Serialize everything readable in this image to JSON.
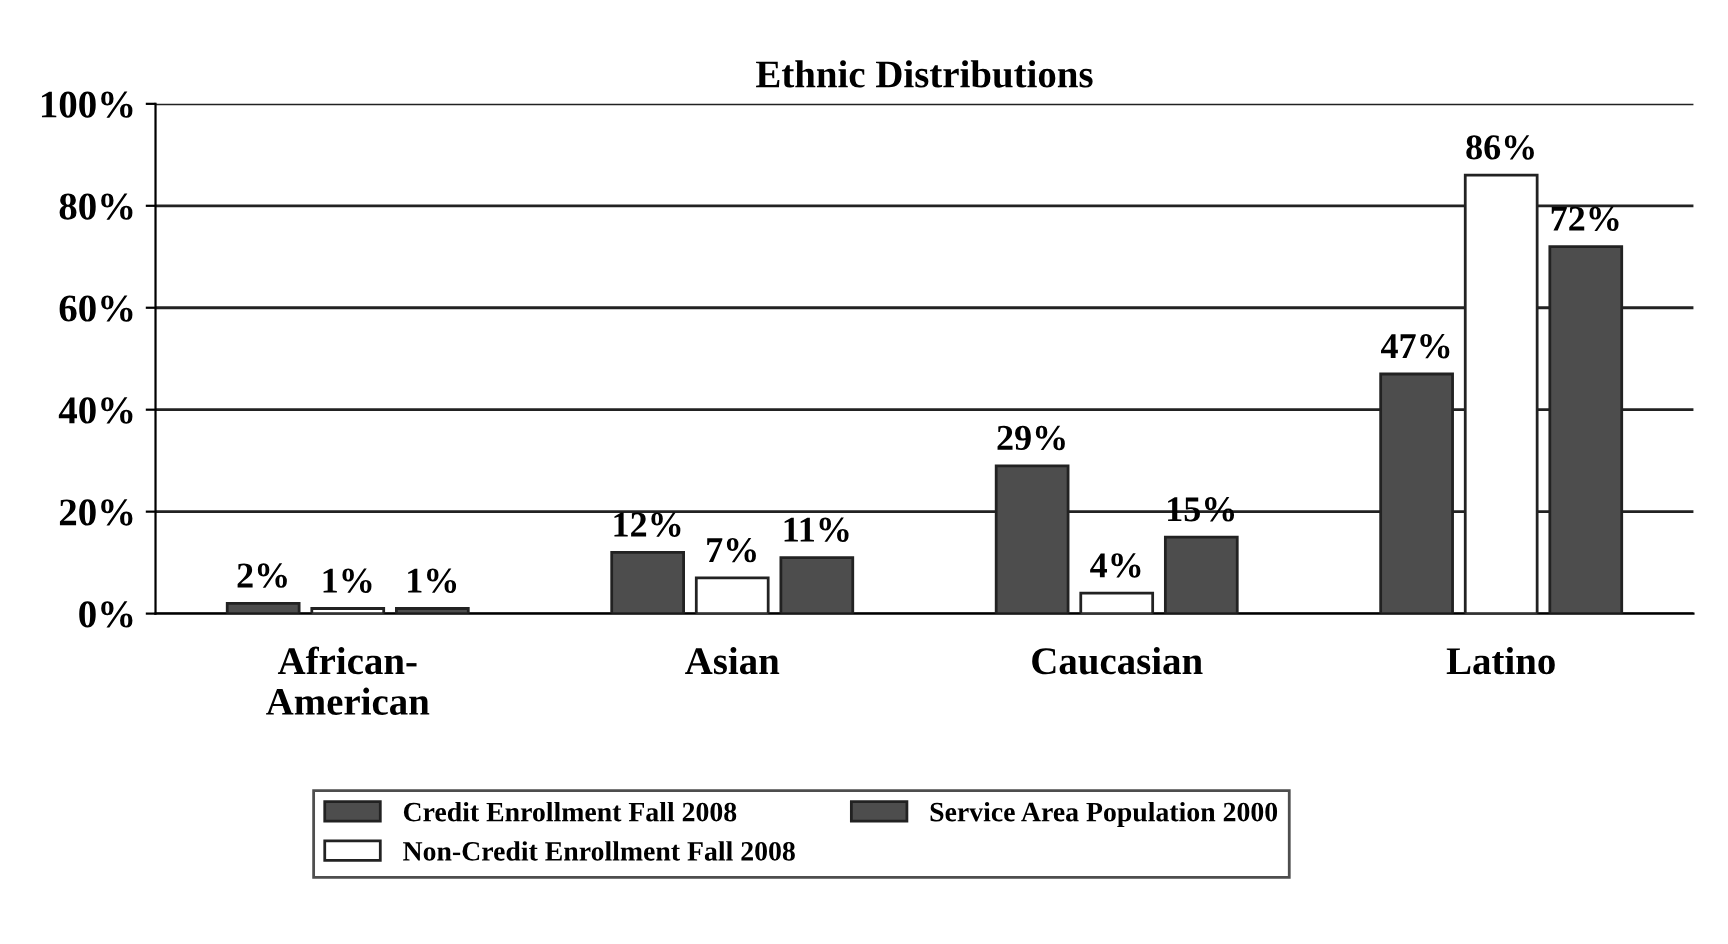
{
  "chart_data": {
    "type": "bar",
    "title": "Ethnic Distributions",
    "categories": [
      "African-\nAmerican",
      "Asian",
      "Caucasian",
      "Latino"
    ],
    "series": [
      {
        "name": "Credit Enrollment Fall 2008",
        "color": "#4d4d4d",
        "values": [
          2,
          12,
          29,
          47
        ],
        "value_labels": [
          "2%",
          "12%",
          "29%",
          "47%"
        ]
      },
      {
        "name": "Non-Credit Enrollment Fall 2008",
        "color": "#ffffff",
        "values": [
          1,
          7,
          4,
          86
        ],
        "value_labels": [
          "1%",
          "7%",
          "4%",
          "86%"
        ]
      },
      {
        "name": "Service Area Population 2000",
        "color": "#4d4d4d",
        "values": [
          1,
          11,
          15,
          72
        ],
        "value_labels": [
          "1%",
          "11%",
          "15%",
          "72%"
        ]
      }
    ],
    "ylim": [
      0,
      100
    ],
    "yticks": [
      {
        "value": 0,
        "label": "0%"
      },
      {
        "value": 20,
        "label": "20%"
      },
      {
        "value": 40,
        "label": "40%"
      },
      {
        "value": 60,
        "label": "60%"
      },
      {
        "value": 80,
        "label": "80%"
      },
      {
        "value": 100,
        "label": "100%"
      }
    ],
    "grid": "y",
    "legend": "bottom"
  }
}
